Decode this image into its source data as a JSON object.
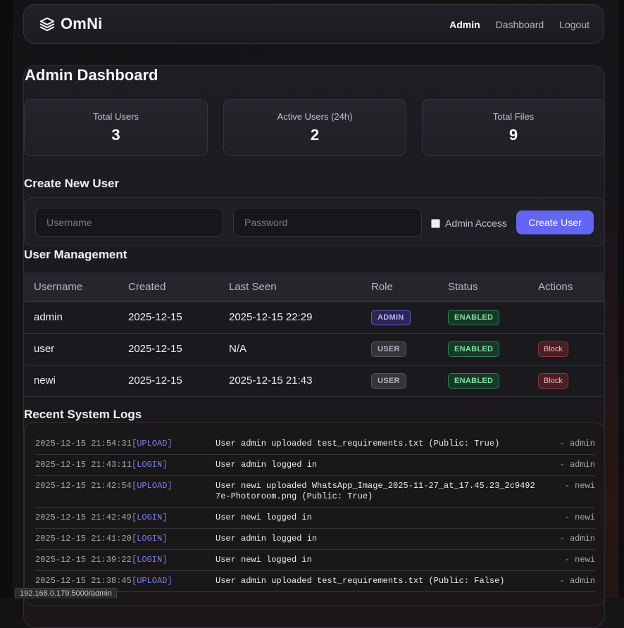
{
  "app": {
    "name": "OmNi",
    "logo_icon": "layers-icon"
  },
  "nav": {
    "admin": "Admin",
    "dashboard": "Dashboard",
    "logout": "Logout"
  },
  "page_title": "Admin Dashboard",
  "stats": {
    "total_users": {
      "label": "Total Users",
      "value": "3"
    },
    "active_users": {
      "label": "Active Users (24h)",
      "value": "2"
    },
    "total_files": {
      "label": "Total Files",
      "value": "9"
    }
  },
  "create_user": {
    "title": "Create New User",
    "username_placeholder": "Username",
    "password_placeholder": "Password",
    "admin_access_label": "Admin Access",
    "submit_label": "Create User"
  },
  "user_management": {
    "title": "User Management",
    "columns": [
      "Username",
      "Created",
      "Last Seen",
      "Role",
      "Status",
      "Actions"
    ],
    "rows": [
      {
        "username": "admin",
        "created": "2025-12-15",
        "last_seen": "2025-12-15 22:29",
        "role": "ADMIN",
        "status": "ENABLED",
        "action": ""
      },
      {
        "username": "user",
        "created": "2025-12-15",
        "last_seen": "N/A",
        "role": "USER",
        "status": "ENABLED",
        "action": "Block"
      },
      {
        "username": "newi",
        "created": "2025-12-15",
        "last_seen": "2025-12-15 21:43",
        "role": "USER",
        "status": "ENABLED",
        "action": "Block"
      }
    ]
  },
  "logs": {
    "title": "Recent System Logs",
    "entries": [
      {
        "time": "2025-12-15 21:54:31",
        "type": "[UPLOAD]",
        "message": "User admin uploaded test_requirements.txt (Public: True)",
        "user": "- admin"
      },
      {
        "time": "2025-12-15 21:43:11",
        "type": "[LOGIN]",
        "message": "User admin logged in",
        "user": "- admin"
      },
      {
        "time": "2025-12-15 21:42:54",
        "type": "[UPLOAD]",
        "message": "User newi uploaded WhatsApp_Image_2025-11-27_at_17.45.23_2c94927e-Photoroom.png (Public: True)",
        "user": "- newi"
      },
      {
        "time": "2025-12-15 21:42:49",
        "type": "[LOGIN]",
        "message": "User newi logged in",
        "user": "- newi"
      },
      {
        "time": "2025-12-15 21:41:20",
        "type": "[LOGIN]",
        "message": "User admin logged in",
        "user": "- admin"
      },
      {
        "time": "2025-12-15 21:39:22",
        "type": "[LOGIN]",
        "message": "User newi logged in",
        "user": "- newi"
      },
      {
        "time": "2025-12-15 21:38:45",
        "type": "[UPLOAD]",
        "message": "User admin uploaded test_requirements.txt (Public: False)",
        "user": "- admin"
      }
    ]
  },
  "status_bar_url": "192.168.0.179:5000/admin",
  "colors": {
    "accent": "#6366f1",
    "enabled": "#7fe0a3",
    "block": "#ffb4b4",
    "log_type": "#7b7ff6"
  }
}
